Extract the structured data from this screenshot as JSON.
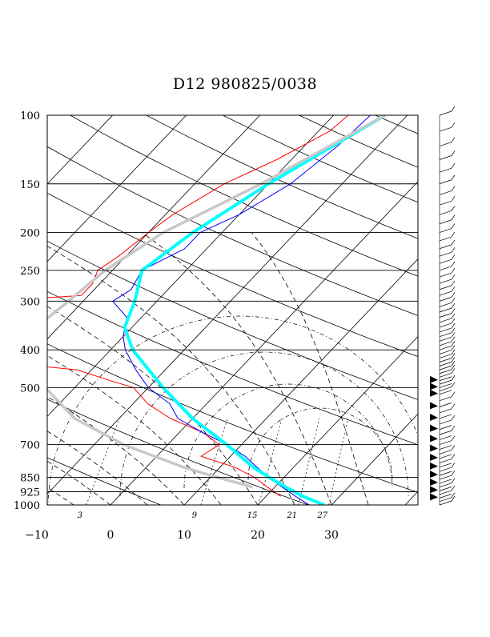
{
  "chart_data": {
    "type": "line",
    "title": "D12 980825/0038",
    "y_axis": {
      "scale": "log",
      "range": [
        1000,
        100
      ],
      "ticks": [
        100,
        150,
        200,
        250,
        300,
        400,
        500,
        700,
        850,
        925,
        1000
      ]
    },
    "x_axis": {
      "scale": "skewed-temperature",
      "ticks": [
        -10,
        0,
        10,
        20,
        30
      ]
    },
    "mixing_ratio_labels": [
      "3",
      "9",
      "15",
      "21",
      "27"
    ],
    "series": [
      {
        "color": "#ff0000",
        "points": [
          [
            100,
            -18
          ],
          [
            110,
            -18.5
          ],
          [
            130,
            -22
          ],
          [
            150,
            -26
          ],
          [
            180,
            -29
          ],
          [
            200,
            -30
          ],
          [
            230,
            -31
          ],
          [
            250,
            -32
          ],
          [
            270,
            -31
          ],
          [
            290,
            -31
          ],
          [
            300,
            -42
          ],
          [
            310,
            -45
          ],
          [
            330,
            -40
          ],
          [
            350,
            -35
          ],
          [
            370,
            -38
          ],
          [
            400,
            -42
          ],
          [
            420,
            -40
          ],
          [
            450,
            -22
          ],
          [
            480,
            -16
          ],
          [
            500,
            -12
          ],
          [
            550,
            -8
          ],
          [
            600,
            -3
          ],
          [
            650,
            3
          ],
          [
            700,
            7
          ],
          [
            750,
            6
          ],
          [
            800,
            12
          ],
          [
            850,
            16
          ],
          [
            900,
            19
          ],
          [
            950,
            22
          ]
        ]
      },
      {
        "color": "#0000ff",
        "points": [
          [
            100,
            -15
          ],
          [
            120,
            -15.5
          ],
          [
            150,
            -17
          ],
          [
            180,
            -20
          ],
          [
            200,
            -23
          ],
          [
            220,
            -23
          ],
          [
            250,
            -26
          ],
          [
            280,
            -25
          ],
          [
            300,
            -26
          ],
          [
            330,
            -22
          ],
          [
            370,
            -20
          ],
          [
            400,
            -18
          ],
          [
            450,
            -14
          ],
          [
            500,
            -10
          ],
          [
            550,
            -5
          ],
          [
            600,
            -2
          ],
          [
            650,
            3
          ],
          [
            700,
            8
          ],
          [
            750,
            12
          ],
          [
            800,
            15
          ],
          [
            850,
            18
          ],
          [
            900,
            21
          ],
          [
            950,
            24
          ],
          [
            1000,
            27
          ]
        ]
      },
      {
        "color": "#00ffff",
        "points": [
          [
            100,
            -13
          ],
          [
            150,
            -20
          ],
          [
            200,
            -24
          ],
          [
            250,
            -26
          ],
          [
            300,
            -23
          ],
          [
            350,
            -21
          ],
          [
            400,
            -17
          ],
          [
            500,
            -8
          ],
          [
            600,
            0
          ],
          [
            700,
            8
          ],
          [
            800,
            14.5
          ],
          [
            850,
            18
          ],
          [
            900,
            21.5
          ],
          [
            950,
            25
          ],
          [
            1000,
            29
          ]
        ]
      },
      {
        "color": "#c8c8c8",
        "points": [
          [
            100,
            -13
          ],
          [
            150,
            -21
          ],
          [
            200,
            -28
          ],
          [
            250,
            -31
          ],
          [
            300,
            -32
          ],
          [
            350,
            -33
          ],
          [
            400,
            -31
          ],
          [
            500,
            -24
          ],
          [
            600,
            -16
          ],
          [
            700,
            -6
          ],
          [
            800,
            5
          ],
          [
            850,
            11
          ],
          [
            900,
            17
          ]
        ]
      }
    ],
    "wind_barbs": {
      "levels": [
        100,
        110,
        120,
        130,
        140,
        150,
        160,
        170,
        180,
        190,
        200,
        210,
        220,
        230,
        240,
        250,
        260,
        270,
        280,
        290,
        300,
        310,
        320,
        330,
        340,
        350,
        360,
        370,
        380,
        390,
        400,
        410,
        420,
        430,
        440,
        450,
        460,
        470,
        480,
        490,
        500,
        510,
        520,
        540,
        560,
        580,
        600,
        620,
        640,
        660,
        680,
        700,
        720,
        740,
        760,
        780,
        800,
        820,
        840,
        860,
        880,
        900,
        920,
        940,
        960,
        980,
        1000
      ]
    }
  }
}
